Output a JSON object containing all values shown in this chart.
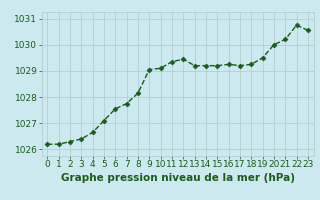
{
  "x": [
    0,
    1,
    2,
    3,
    4,
    5,
    6,
    7,
    8,
    9,
    10,
    11,
    12,
    13,
    14,
    15,
    16,
    17,
    18,
    19,
    20,
    21,
    22,
    23
  ],
  "y": [
    1026.2,
    1026.2,
    1026.3,
    1026.4,
    1026.65,
    1027.1,
    1027.55,
    1027.75,
    1028.15,
    1029.05,
    1029.1,
    1029.35,
    1029.45,
    1029.2,
    1029.2,
    1029.2,
    1029.25,
    1029.2,
    1029.25,
    1029.5,
    1030.0,
    1030.2,
    1030.75,
    1030.55
  ],
  "xlabel": "Graphe pression niveau de la mer (hPa)",
  "ylim": [
    1025.75,
    1031.25
  ],
  "xlim": [
    -0.5,
    23.5
  ],
  "yticks": [
    1026,
    1027,
    1028,
    1029,
    1030,
    1031
  ],
  "xticks": [
    0,
    1,
    2,
    3,
    4,
    5,
    6,
    7,
    8,
    9,
    10,
    11,
    12,
    13,
    14,
    15,
    16,
    17,
    18,
    19,
    20,
    21,
    22,
    23
  ],
  "line_color": "#1a5c1a",
  "marker_color": "#1a5c1a",
  "bg_color": "#cde9f0",
  "grid_color": "#b0c8cc",
  "xlabel_color": "#1a5c1a",
  "xlabel_fontsize": 7.5,
  "tick_fontsize": 6.5,
  "marker": "D",
  "marker_size": 2.5,
  "line_width": 1.0
}
